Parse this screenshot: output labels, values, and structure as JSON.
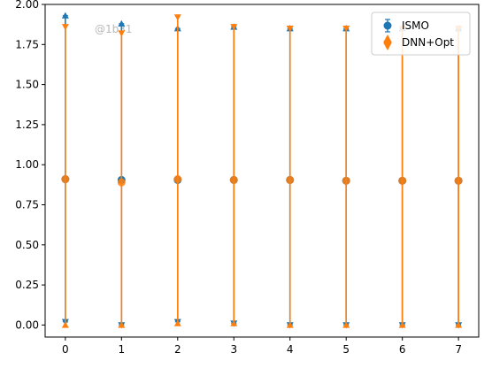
{
  "watermark": "@1b31",
  "chart_data": {
    "type": "scatter",
    "title": "",
    "xlabel": "",
    "ylabel": "",
    "xlim": [
      -0.36,
      7.36
    ],
    "ylim": [
      -0.075,
      2.0
    ],
    "x_ticks": [
      "0",
      "1",
      "2",
      "3",
      "4",
      "5",
      "6",
      "7"
    ],
    "y_ticks": [
      "0.00",
      "0.25",
      "0.50",
      "0.75",
      "1.00",
      "1.25",
      "1.50",
      "1.75",
      "2.00"
    ],
    "grid": false,
    "legend_position": "top-right",
    "series": [
      {
        "name": "ISMO",
        "color": "#1f77b4",
        "marker": "circle",
        "errorbar_style": "capped",
        "x": [
          0,
          1,
          2,
          3,
          4,
          5,
          6,
          7
        ],
        "y": [
          0.91,
          0.905,
          0.905,
          0.905,
          0.905,
          0.9,
          0.9,
          0.9
        ],
        "y_low": [
          0.02,
          0.0,
          0.02,
          0.01,
          0.0,
          0.0,
          0.0,
          0.0
        ],
        "y_high": [
          1.93,
          1.88,
          1.85,
          1.86,
          1.85,
          1.85,
          1.85,
          1.85
        ],
        "upper_markers": [
          "^",
          "^",
          "^",
          "^",
          "^",
          "^",
          "^",
          "^"
        ],
        "lower_markers": [
          "v",
          "v",
          "v",
          "v",
          "v",
          "v",
          "v",
          "v"
        ]
      },
      {
        "name": "DNN+Opt",
        "color": "#ff7f0e",
        "marker": "circle",
        "errorbar_style": "arrows",
        "x": [
          0,
          1,
          2,
          3,
          4,
          5,
          6,
          7
        ],
        "y": [
          0.91,
          0.89,
          0.91,
          0.905,
          0.905,
          0.9,
          0.9,
          0.9
        ],
        "y_low": [
          0.0,
          0.0,
          0.01,
          0.01,
          0.0,
          0.0,
          0.0,
          0.0
        ],
        "y_high": [
          1.86,
          1.82,
          1.92,
          1.86,
          1.85,
          1.85,
          1.85,
          1.85
        ],
        "upper_markers": [
          "v",
          "v",
          "v",
          "v",
          "v",
          "v",
          "v",
          "v"
        ],
        "lower_markers": [
          "^",
          "^",
          "^",
          "^",
          "^",
          "^",
          "^",
          "^"
        ]
      }
    ]
  }
}
